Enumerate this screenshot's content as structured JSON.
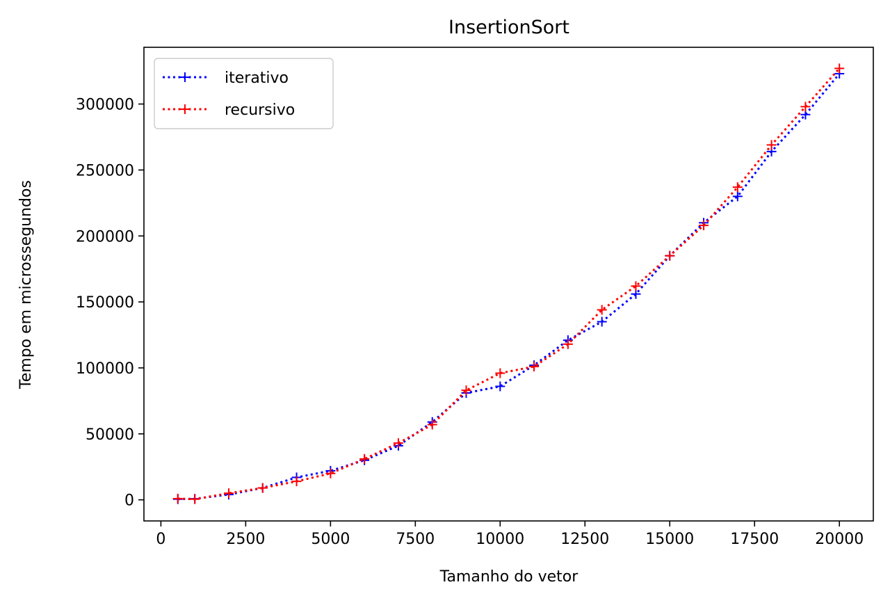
{
  "chart_data": {
    "type": "line",
    "title": "InsertionSort",
    "xlabel": "Tamanho do vetor",
    "ylabel": "Tempo em microssegundos",
    "xlim": [
      -500,
      21000
    ],
    "ylim": [
      -16000,
      343000
    ],
    "xticks": [
      0,
      2500,
      5000,
      7500,
      10000,
      12500,
      15000,
      17500,
      20000
    ],
    "yticks": [
      0,
      50000,
      100000,
      150000,
      200000,
      250000,
      300000
    ],
    "grid": false,
    "legend_position": "top-left",
    "x": [
      500,
      1000,
      2000,
      3000,
      4000,
      5000,
      6000,
      7000,
      8000,
      9000,
      10000,
      11000,
      12000,
      13000,
      14000,
      15000,
      16000,
      17000,
      18000,
      19000,
      20000
    ],
    "series": [
      {
        "name": "iterativo",
        "color": "#0000ff",
        "marker": "plus",
        "linestyle": "dotted",
        "values": [
          500,
          800,
          4000,
          9000,
          17000,
          22000,
          30000,
          41000,
          59000,
          81000,
          86000,
          102000,
          121000,
          135000,
          156000,
          185000,
          210000,
          230000,
          264000,
          292000,
          323000
        ]
      },
      {
        "name": "recursivo",
        "color": "#ff0000",
        "marker": "plus",
        "linestyle": "dotted",
        "values": [
          900,
          500,
          5000,
          9000,
          14000,
          20000,
          31000,
          43000,
          57000,
          83000,
          96000,
          101000,
          118000,
          144000,
          162000,
          185000,
          208000,
          237000,
          269000,
          298000,
          327000
        ]
      }
    ]
  }
}
